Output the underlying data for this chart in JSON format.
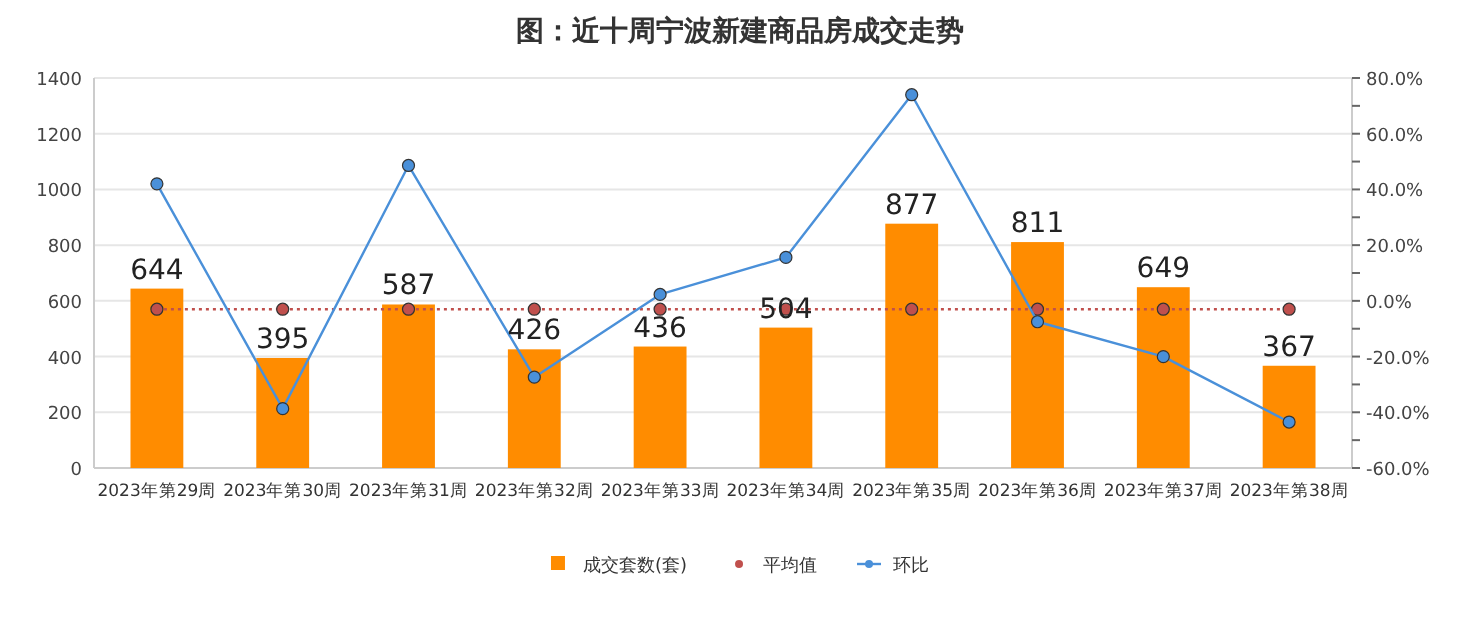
{
  "chart_data": {
    "type": "bar",
    "title": "图：近十周宁波新建商品房成交走势",
    "categories": [
      "2023年第29周",
      "2023年第30周",
      "2023年第31周",
      "2023年第32周",
      "2023年第33周",
      "2023年第34周",
      "2023年第35周",
      "2023年第36周",
      "2023年第37周",
      "2023年第38周"
    ],
    "series": [
      {
        "name": "成交套数(套)",
        "color": "#ff8c00",
        "data_labels": true,
        "values": [
          644,
          395,
          587,
          426,
          436,
          504,
          877,
          811,
          649,
          367
        ]
      },
      {
        "name": "平均值",
        "type": "line",
        "color": "#c0504d",
        "line_style": "dotted",
        "marker": "circle",
        "values": [
          570,
          570,
          570,
          570,
          570,
          570,
          570,
          570,
          570,
          570
        ]
      },
      {
        "name": "环比",
        "type": "line",
        "axis": "y2",
        "color": "#4a90d9",
        "line_style": "solid",
        "marker": "circle",
        "values": [
          42,
          -38.7,
          48.6,
          -27.4,
          2.3,
          15.6,
          74.0,
          -7.5,
          -20.0,
          -43.5
        ]
      }
    ],
    "ylim": [
      0,
      1400
    ],
    "yticks": [
      0,
      200,
      400,
      600,
      800,
      1000,
      1200,
      1400
    ],
    "y2lim": [
      -60,
      80
    ],
    "y2ticks": [
      {
        "value": -60,
        "label": "-60.0%"
      },
      {
        "value": -50,
        "label": null
      },
      {
        "value": -40,
        "label": "-40.0%"
      },
      {
        "value": -30,
        "label": null
      },
      {
        "value": -20,
        "label": "-20.0%"
      },
      {
        "value": -10,
        "label": null
      },
      {
        "value": 0,
        "label": "0.0%"
      },
      {
        "value": 10,
        "label": null
      },
      {
        "value": 20,
        "label": "20.0%"
      },
      {
        "value": 30,
        "label": null
      },
      {
        "value": 40,
        "label": "40.0%"
      },
      {
        "value": 50,
        "label": null
      },
      {
        "value": 60,
        "label": "60.0%"
      },
      {
        "value": 70,
        "label": null
      },
      {
        "value": 80,
        "label": "80.0%"
      }
    ],
    "grid": "y",
    "legend": "bottom"
  }
}
